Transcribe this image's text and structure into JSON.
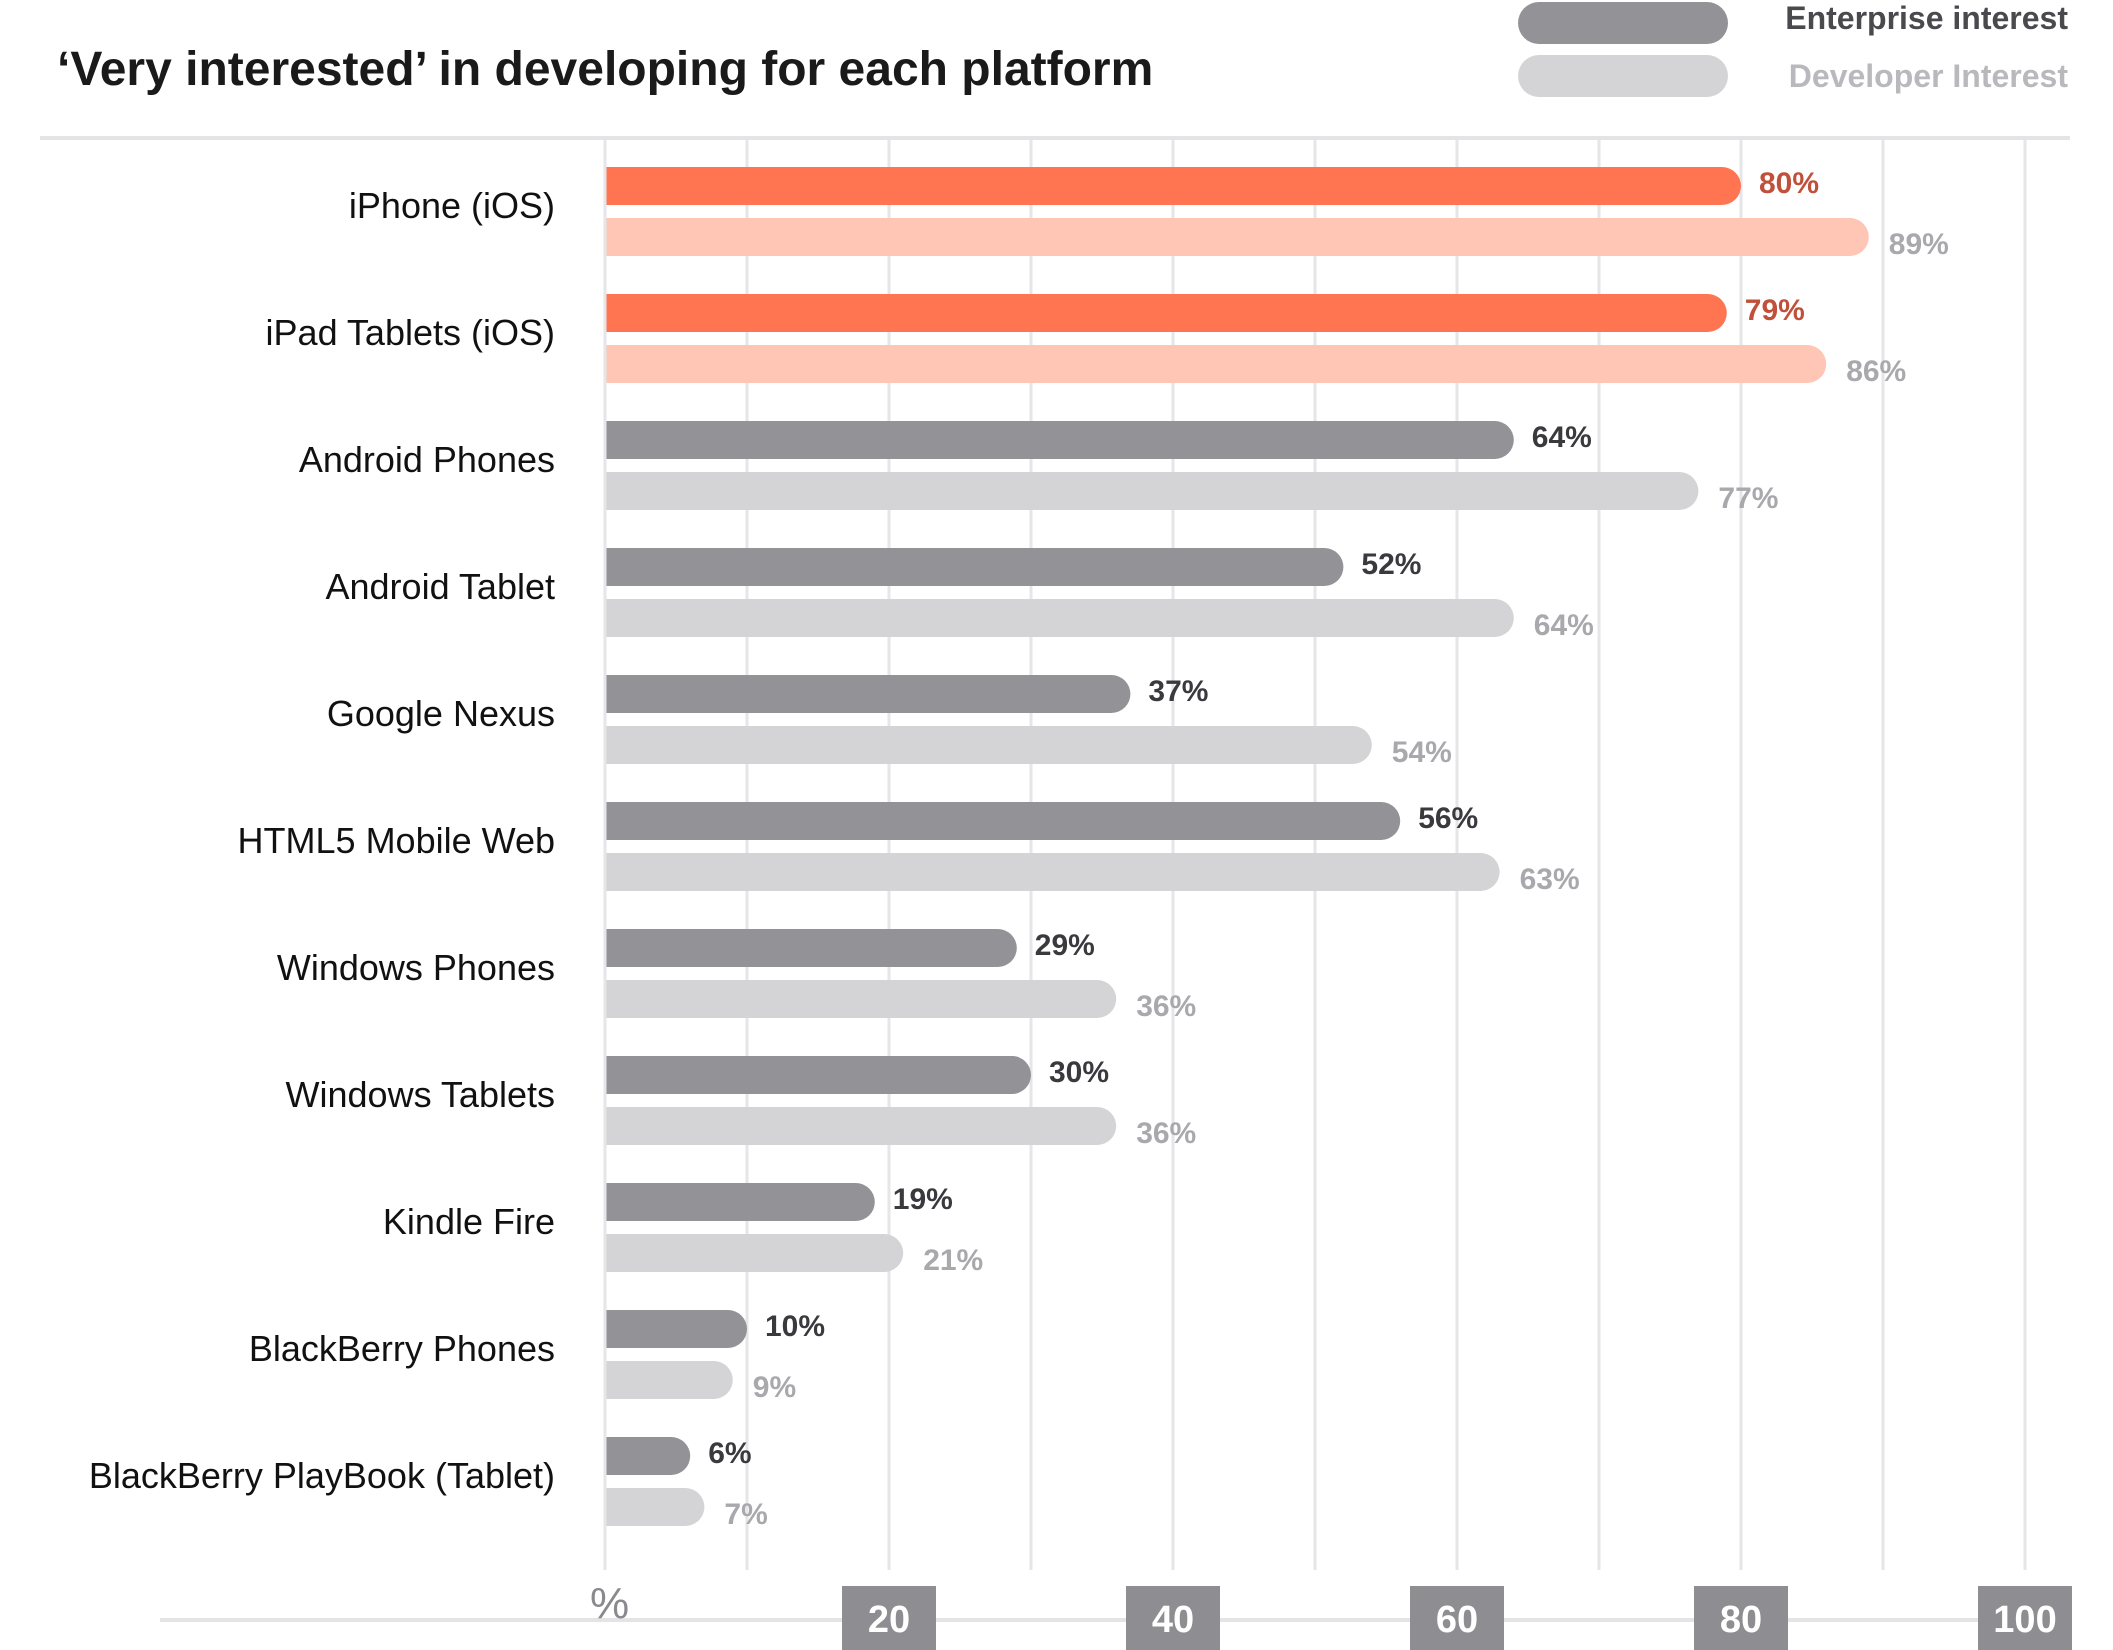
{
  "chart_data": {
    "type": "bar",
    "orientation": "horizontal",
    "title": "‘Very interested’ in developing for each platform",
    "categories": [
      "iPhone (iOS)",
      "iPad Tablets (iOS)",
      "Android Phones",
      "Android Tablet",
      "Google Nexus",
      "HTML5 Mobile Web",
      "Windows Phones",
      "Windows Tablets",
      "Kindle Fire",
      "BlackBerry Phones",
      "BlackBerry PlayBook (Tablet)"
    ],
    "series": [
      {
        "name": "Enterprise interest",
        "values": [
          80,
          79,
          64,
          52,
          37,
          56,
          29,
          30,
          19,
          10,
          6
        ],
        "labels": [
          "80%",
          "79%",
          "64%",
          "52%",
          "37%",
          "56%",
          "29%",
          "30%",
          "19%",
          "10%",
          "6%"
        ],
        "color": "#939397",
        "highlight_color": "#ff7552"
      },
      {
        "name": "Developer Interest",
        "values": [
          89,
          86,
          77,
          64,
          54,
          63,
          36,
          36,
          21,
          9,
          7
        ],
        "labels": [
          "89%",
          "86%",
          "77%",
          "64%",
          "54%",
          "63%",
          "36%",
          "36%",
          "21%",
          "9%",
          "7%"
        ],
        "color": "#d4d4d6",
        "highlight_color": "#ffc5b5"
      }
    ],
    "highlighted_categories": [
      0,
      1
    ],
    "xlim": [
      0,
      100
    ],
    "x_unit": "%",
    "x_ticks": [
      20,
      40,
      60,
      80,
      100
    ],
    "grid": true,
    "legend_position": "top-right",
    "colors": {
      "highlight_value_text": "#c0503a",
      "enterprise_value_text": "#3a3a3e",
      "developer_value_text": "#a9a9ad",
      "tick_box": "#8e8e92",
      "grid_line": "#e6e6e8"
    }
  }
}
